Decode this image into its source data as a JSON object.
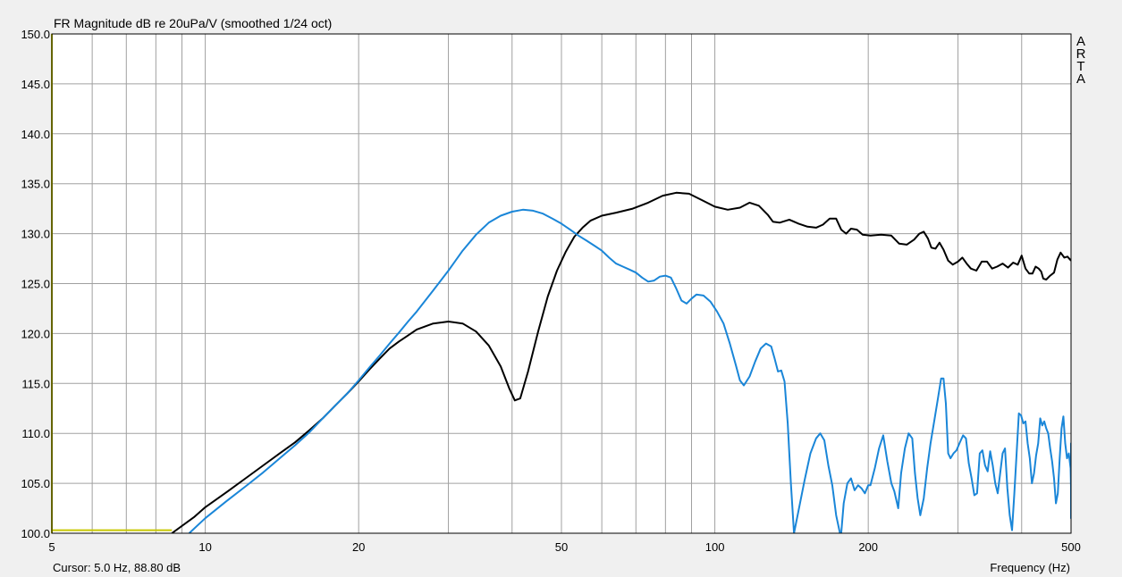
{
  "chart_data": {
    "type": "line",
    "title": "FR Magnitude dB re 20uPa/V (smoothed 1/24 oct)",
    "xlabel": "Frequency (Hz)",
    "ylabel": "",
    "x_scale": "log",
    "xlim": [
      5,
      500
    ],
    "ylim": [
      100,
      150
    ],
    "grid": true,
    "x_ticks": [
      5,
      10,
      20,
      50,
      100,
      200,
      500
    ],
    "y_ticks": [
      "100.0",
      "105.0",
      "110.0",
      "115.0",
      "120.0",
      "125.0",
      "130.0",
      "135.0",
      "140.0",
      "145.0",
      "150.0"
    ],
    "watermark": "ARTA",
    "cursor_readout": "Cursor: 5.0 Hz, 88.80 dB",
    "colors": {
      "black": "#000000",
      "blue": "#1a86d8",
      "cursor": "#c8c800",
      "grid": "#a0a0a0"
    },
    "cursor_trace": [
      [
        5,
        100.3
      ],
      [
        8.6,
        100.3
      ]
    ],
    "series": [
      {
        "color": "#000000",
        "points": [
          [
            8.6,
            100
          ],
          [
            9.5,
            101.6
          ],
          [
            10,
            102.6
          ],
          [
            11,
            104.1
          ],
          [
            12,
            105.5
          ],
          [
            13,
            106.8
          ],
          [
            14,
            108.0
          ],
          [
            15,
            109.1
          ],
          [
            16,
            110.3
          ],
          [
            17,
            111.5
          ],
          [
            18,
            112.8
          ],
          [
            19,
            114.0
          ],
          [
            20,
            115.2
          ],
          [
            21,
            116.4
          ],
          [
            22,
            117.5
          ],
          [
            23,
            118.5
          ],
          [
            24,
            119.2
          ],
          [
            25,
            119.8
          ],
          [
            26,
            120.4
          ],
          [
            28,
            121.0
          ],
          [
            30,
            121.2
          ],
          [
            32,
            121.0
          ],
          [
            34,
            120.2
          ],
          [
            36,
            118.8
          ],
          [
            38,
            116.7
          ],
          [
            39.5,
            114.5
          ],
          [
            40.5,
            113.3
          ],
          [
            41.5,
            113.5
          ],
          [
            43,
            116.2
          ],
          [
            45,
            120.2
          ],
          [
            47,
            123.7
          ],
          [
            49,
            126.3
          ],
          [
            51,
            128.2
          ],
          [
            53,
            129.7
          ],
          [
            55,
            130.6
          ],
          [
            57,
            131.3
          ],
          [
            60,
            131.8
          ],
          [
            64,
            132.1
          ],
          [
            69,
            132.5
          ],
          [
            74,
            133.1
          ],
          [
            79,
            133.8
          ],
          [
            84,
            134.1
          ],
          [
            89,
            134.0
          ],
          [
            94,
            133.4
          ],
          [
            100,
            132.7
          ],
          [
            106,
            132.4
          ],
          [
            112,
            132.6
          ],
          [
            117,
            133.1
          ],
          [
            122,
            132.8
          ],
          [
            127,
            131.9
          ],
          [
            130,
            131.2
          ],
          [
            134,
            131.1
          ],
          [
            140,
            131.4
          ],
          [
            146,
            131.0
          ],
          [
            152,
            130.7
          ],
          [
            158,
            130.6
          ],
          [
            163,
            130.9
          ],
          [
            168,
            131.5
          ],
          [
            173,
            131.5
          ],
          [
            177,
            130.4
          ],
          [
            181,
            130.0
          ],
          [
            185,
            130.5
          ],
          [
            190,
            130.4
          ],
          [
            195,
            129.9
          ],
          [
            202,
            129.8
          ],
          [
            212,
            129.9
          ],
          [
            222,
            129.8
          ],
          [
            230,
            129.0
          ],
          [
            238,
            128.9
          ],
          [
            246,
            129.4
          ],
          [
            252,
            130.0
          ],
          [
            257,
            130.2
          ],
          [
            262,
            129.5
          ],
          [
            266,
            128.6
          ],
          [
            271,
            128.5
          ],
          [
            276,
            129.1
          ],
          [
            281,
            128.4
          ],
          [
            287,
            127.3
          ],
          [
            293,
            126.9
          ],
          [
            300,
            127.2
          ],
          [
            306,
            127.6
          ],
          [
            312,
            127.0
          ],
          [
            318,
            126.5
          ],
          [
            326,
            126.3
          ],
          [
            334,
            127.2
          ],
          [
            342,
            127.2
          ],
          [
            350,
            126.5
          ],
          [
            358,
            126.7
          ],
          [
            367,
            127.0
          ],
          [
            376,
            126.6
          ],
          [
            385,
            127.1
          ],
          [
            393,
            126.9
          ],
          [
            400,
            127.8
          ],
          [
            407,
            126.5
          ],
          [
            414,
            126.0
          ],
          [
            420,
            126.0
          ],
          [
            426,
            126.7
          ],
          [
            432,
            126.5
          ],
          [
            437,
            126.2
          ],
          [
            441,
            125.5
          ],
          [
            447,
            125.4
          ],
          [
            455,
            125.8
          ],
          [
            463,
            126.1
          ],
          [
            470,
            127.4
          ],
          [
            477,
            128.1
          ],
          [
            485,
            127.6
          ],
          [
            492,
            127.7
          ],
          [
            500,
            127.3
          ]
        ]
      },
      {
        "color": "#1a86d8",
        "points": [
          [
            9.3,
            100
          ],
          [
            10,
            101.5
          ],
          [
            11,
            103.2
          ],
          [
            12,
            104.7
          ],
          [
            13,
            106.1
          ],
          [
            14,
            107.5
          ],
          [
            15,
            108.8
          ],
          [
            16,
            110.1
          ],
          [
            17,
            111.5
          ],
          [
            18,
            112.8
          ],
          [
            19,
            114.0
          ],
          [
            20,
            115.3
          ],
          [
            21,
            116.6
          ],
          [
            22,
            117.8
          ],
          [
            23,
            119.0
          ],
          [
            24,
            120.1
          ],
          [
            25,
            121.2
          ],
          [
            26,
            122.2
          ],
          [
            28,
            124.3
          ],
          [
            30,
            126.3
          ],
          [
            32,
            128.3
          ],
          [
            34,
            129.9
          ],
          [
            36,
            131.1
          ],
          [
            38,
            131.8
          ],
          [
            40,
            132.2
          ],
          [
            42,
            132.4
          ],
          [
            44,
            132.3
          ],
          [
            46,
            132.0
          ],
          [
            48,
            131.5
          ],
          [
            50,
            131.0
          ],
          [
            52,
            130.4
          ],
          [
            54,
            129.8
          ],
          [
            56,
            129.3
          ],
          [
            58,
            128.8
          ],
          [
            60,
            128.3
          ],
          [
            62,
            127.6
          ],
          [
            64,
            127.0
          ],
          [
            66,
            126.7
          ],
          [
            68,
            126.4
          ],
          [
            70,
            126.1
          ],
          [
            72,
            125.6
          ],
          [
            74,
            125.2
          ],
          [
            76,
            125.3
          ],
          [
            78,
            125.7
          ],
          [
            80,
            125.8
          ],
          [
            82,
            125.6
          ],
          [
            84,
            124.5
          ],
          [
            86,
            123.3
          ],
          [
            88,
            123.0
          ],
          [
            90,
            123.5
          ],
          [
            92,
            123.9
          ],
          [
            95,
            123.8
          ],
          [
            98,
            123.2
          ],
          [
            101,
            122.2
          ],
          [
            104,
            121.0
          ],
          [
            107,
            119.0
          ],
          [
            110,
            116.8
          ],
          [
            112,
            115.3
          ],
          [
            114,
            114.8
          ],
          [
            117,
            115.7
          ],
          [
            120,
            117.2
          ],
          [
            123,
            118.5
          ],
          [
            126,
            119.0
          ],
          [
            129,
            118.7
          ],
          [
            131,
            117.5
          ],
          [
            133,
            116.2
          ],
          [
            135,
            116.3
          ],
          [
            137,
            115.2
          ],
          [
            139,
            111.0
          ],
          [
            141,
            105.0
          ],
          [
            143,
            100.0
          ],
          [
            146,
            102.3
          ],
          [
            150,
            105.3
          ],
          [
            154,
            108.0
          ],
          [
            158,
            109.5
          ],
          [
            161,
            110.0
          ],
          [
            164,
            109.3
          ],
          [
            167,
            106.8
          ],
          [
            170,
            104.8
          ],
          [
            173,
            101.8
          ],
          [
            176,
            100.0
          ],
          [
            177,
            100.0
          ],
          [
            179,
            103.0
          ],
          [
            182,
            105.0
          ],
          [
            185,
            105.5
          ],
          [
            188,
            104.3
          ],
          [
            191,
            104.8
          ],
          [
            194,
            104.5
          ],
          [
            197,
            104.0
          ],
          [
            200,
            104.8
          ],
          [
            202,
            104.8
          ],
          [
            206,
            106.5
          ],
          [
            210,
            108.5
          ],
          [
            214,
            109.8
          ],
          [
            218,
            107.2
          ],
          [
            222,
            105.0
          ],
          [
            225,
            104.2
          ],
          [
            229,
            102.5
          ],
          [
            232,
            106.0
          ],
          [
            236,
            108.5
          ],
          [
            240,
            110.0
          ],
          [
            244,
            109.5
          ],
          [
            247,
            106.0
          ],
          [
            250,
            103.5
          ],
          [
            253,
            101.8
          ],
          [
            257,
            103.5
          ],
          [
            261,
            106.5
          ],
          [
            265,
            109.0
          ],
          [
            270,
            111.5
          ],
          [
            274,
            113.5
          ],
          [
            278,
            115.5
          ],
          [
            281,
            115.5
          ],
          [
            284,
            113.0
          ],
          [
            287,
            108.0
          ],
          [
            290,
            107.5
          ],
          [
            294,
            108.0
          ],
          [
            298,
            108.3
          ],
          [
            302,
            109.0
          ],
          [
            307,
            109.8
          ],
          [
            311,
            109.5
          ],
          [
            315,
            107.0
          ],
          [
            319,
            105.5
          ],
          [
            323,
            103.8
          ],
          [
            327,
            104.0
          ],
          [
            331,
            108.0
          ],
          [
            335,
            108.3
          ],
          [
            339,
            106.8
          ],
          [
            343,
            106.2
          ],
          [
            347,
            108.2
          ],
          [
            351,
            106.8
          ],
          [
            355,
            105.0
          ],
          [
            359,
            104.0
          ],
          [
            363,
            106.0
          ],
          [
            367,
            108.0
          ],
          [
            371,
            108.5
          ],
          [
            375,
            104.5
          ],
          [
            379,
            101.8
          ],
          [
            383,
            100.3
          ],
          [
            387,
            104.0
          ],
          [
            391,
            108.0
          ],
          [
            395,
            112.0
          ],
          [
            399,
            111.8
          ],
          [
            403,
            111.0
          ],
          [
            407,
            111.2
          ],
          [
            411,
            109.0
          ],
          [
            415,
            107.5
          ],
          [
            419,
            105.0
          ],
          [
            423,
            106.0
          ],
          [
            427,
            107.8
          ],
          [
            431,
            109.0
          ],
          [
            435,
            111.5
          ],
          [
            439,
            110.8
          ],
          [
            443,
            111.2
          ],
          [
            447,
            110.5
          ],
          [
            451,
            110.0
          ],
          [
            455,
            108.5
          ],
          [
            459,
            107.2
          ],
          [
            463,
            105.5
          ],
          [
            467,
            103.0
          ],
          [
            471,
            104.0
          ],
          [
            475,
            107.5
          ],
          [
            479,
            110.5
          ],
          [
            483,
            111.7
          ],
          [
            487,
            109.0
          ],
          [
            491,
            107.5
          ],
          [
            495,
            108.0
          ],
          [
            499,
            106.5
          ],
          [
            503,
            104.5
          ],
          [
            507,
            103.5
          ],
          [
            511,
            104.0
          ],
          [
            515,
            107.5
          ],
          [
            519,
            108.3
          ],
          [
            523,
            107.5
          ],
          [
            527,
            106.0
          ],
          [
            531,
            103.0
          ],
          [
            535,
            102.8
          ],
          [
            539,
            101.5
          ],
          [
            543,
            103.5
          ],
          [
            547,
            105.8
          ],
          [
            551,
            109.0
          ],
          [
            555,
            108.0
          ],
          [
            560,
            108.9
          ],
          [
            500,
            108.9
          ]
        ]
      }
    ]
  }
}
